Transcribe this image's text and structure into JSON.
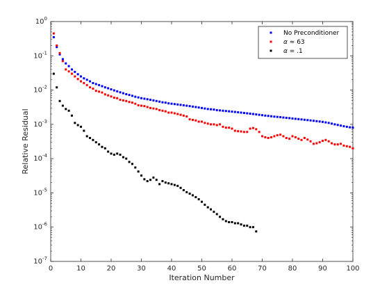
{
  "chart_data": {
    "type": "scatter",
    "title": "",
    "xlabel": "Iteration Number",
    "ylabel": "Relative Residual",
    "xlim": [
      0,
      100
    ],
    "ylim": [
      1e-07,
      1
    ],
    "yscale": "log",
    "grid": false,
    "legend_position": "top-right",
    "x_ticks": [
      {
        "value": 0,
        "label": "0"
      },
      {
        "value": 10,
        "label": "10"
      },
      {
        "value": 20,
        "label": "20"
      },
      {
        "value": 30,
        "label": "30"
      },
      {
        "value": 40,
        "label": "40"
      },
      {
        "value": 50,
        "label": "50"
      },
      {
        "value": 60,
        "label": "60"
      },
      {
        "value": 70,
        "label": "70"
      },
      {
        "value": 80,
        "label": "80"
      },
      {
        "value": 90,
        "label": "90"
      },
      {
        "value": 100,
        "label": "100"
      }
    ],
    "y_ticks": [
      {
        "value": 1,
        "base": "10",
        "exp": "0"
      },
      {
        "value": 0.1,
        "base": "10",
        "exp": "-1"
      },
      {
        "value": 0.01,
        "base": "10",
        "exp": "-2"
      },
      {
        "value": 0.001,
        "base": "10",
        "exp": "-3"
      },
      {
        "value": 0.0001,
        "base": "10",
        "exp": "-4"
      },
      {
        "value": 1e-05,
        "base": "10",
        "exp": "-5"
      },
      {
        "value": 1e-06,
        "base": "10",
        "exp": "-6"
      },
      {
        "value": 1e-07,
        "base": "10",
        "exp": "-7"
      }
    ],
    "series": [
      {
        "name": "No Preconditioner",
        "color": "#0000ff",
        "points": [
          [
            1,
            0.35
          ],
          [
            2,
            0.18
          ],
          [
            3,
            0.11
          ],
          [
            4,
            0.08
          ],
          [
            5,
            0.06
          ],
          [
            6,
            0.05
          ],
          [
            7,
            0.04
          ],
          [
            8,
            0.034
          ],
          [
            9,
            0.029
          ],
          [
            10,
            0.025
          ],
          [
            11,
            0.022
          ],
          [
            12,
            0.02
          ],
          [
            13,
            0.018
          ],
          [
            14,
            0.016
          ],
          [
            15,
            0.015
          ],
          [
            16,
            0.014
          ],
          [
            17,
            0.013
          ],
          [
            18,
            0.012
          ],
          [
            19,
            0.0113
          ],
          [
            20,
            0.0105
          ],
          [
            21,
            0.0098
          ],
          [
            22,
            0.0092
          ],
          [
            23,
            0.0086
          ],
          [
            24,
            0.0081
          ],
          [
            25,
            0.0076
          ],
          [
            26,
            0.0072
          ],
          [
            27,
            0.0068
          ],
          [
            28,
            0.0064
          ],
          [
            29,
            0.0061
          ],
          [
            30,
            0.0058
          ],
          [
            31,
            0.0056
          ],
          [
            32,
            0.0054
          ],
          [
            33,
            0.0052
          ],
          [
            34,
            0.005
          ],
          [
            35,
            0.0048
          ],
          [
            36,
            0.0046
          ],
          [
            37,
            0.0044
          ],
          [
            38,
            0.0043
          ],
          [
            39,
            0.0041
          ],
          [
            40,
            0.004
          ],
          [
            41,
            0.0039
          ],
          [
            42,
            0.0038
          ],
          [
            43,
            0.0037
          ],
          [
            44,
            0.0036
          ],
          [
            45,
            0.0035
          ],
          [
            46,
            0.0034
          ],
          [
            47,
            0.0033
          ],
          [
            48,
            0.0032
          ],
          [
            49,
            0.0031
          ],
          [
            50,
            0.003
          ],
          [
            51,
            0.0029
          ],
          [
            52,
            0.0028
          ],
          [
            53,
            0.00275
          ],
          [
            54,
            0.0027
          ],
          [
            55,
            0.0026
          ],
          [
            56,
            0.00255
          ],
          [
            57,
            0.0025
          ],
          [
            58,
            0.00245
          ],
          [
            59,
            0.0024
          ],
          [
            60,
            0.00235
          ],
          [
            61,
            0.0023
          ],
          [
            62,
            0.00225
          ],
          [
            63,
            0.0022
          ],
          [
            64,
            0.00215
          ],
          [
            65,
            0.0021
          ],
          [
            66,
            0.00205
          ],
          [
            67,
            0.002
          ],
          [
            68,
            0.00195
          ],
          [
            69,
            0.0019
          ],
          [
            70,
            0.00185
          ],
          [
            71,
            0.0018
          ],
          [
            72,
            0.00176
          ],
          [
            73,
            0.00172
          ],
          [
            74,
            0.00168
          ],
          [
            75,
            0.00165
          ],
          [
            76,
            0.00162
          ],
          [
            77,
            0.00158
          ],
          [
            78,
            0.00155
          ],
          [
            79,
            0.00152
          ],
          [
            80,
            0.00148
          ],
          [
            81,
            0.00145
          ],
          [
            82,
            0.00142
          ],
          [
            83,
            0.00139
          ],
          [
            84,
            0.00136
          ],
          [
            85,
            0.00133
          ],
          [
            86,
            0.0013
          ],
          [
            87,
            0.00127
          ],
          [
            88,
            0.00124
          ],
          [
            89,
            0.00121
          ],
          [
            90,
            0.00118
          ],
          [
            91,
            0.00114
          ],
          [
            92,
            0.0011
          ],
          [
            93,
            0.00105
          ],
          [
            94,
            0.001
          ],
          [
            95,
            0.00096
          ],
          [
            96,
            0.00092
          ],
          [
            97,
            0.00088
          ],
          [
            98,
            0.00085
          ],
          [
            99,
            0.00082
          ],
          [
            100,
            0.0008
          ]
        ]
      },
      {
        "name": "α ≈ 63",
        "label_parts": [
          "α",
          " ≈ 63"
        ],
        "color": "#ff0000",
        "points": [
          [
            1,
            0.45
          ],
          [
            2,
            0.2
          ],
          [
            3,
            0.12
          ],
          [
            4,
            0.07
          ],
          [
            5,
            0.04
          ],
          [
            6,
            0.035
          ],
          [
            7,
            0.03
          ],
          [
            8,
            0.025
          ],
          [
            9,
            0.021
          ],
          [
            10,
            0.018
          ],
          [
            11,
            0.016
          ],
          [
            12,
            0.014
          ],
          [
            13,
            0.012
          ],
          [
            14,
            0.011
          ],
          [
            15,
            0.0095
          ],
          [
            16,
            0.009
          ],
          [
            17,
            0.0085
          ],
          [
            18,
            0.0075
          ],
          [
            19,
            0.007
          ],
          [
            20,
            0.0065
          ],
          [
            21,
            0.006
          ],
          [
            22,
            0.0058
          ],
          [
            23,
            0.0052
          ],
          [
            24,
            0.005
          ],
          [
            25,
            0.0048
          ],
          [
            26,
            0.0045
          ],
          [
            27,
            0.0043
          ],
          [
            28,
            0.004
          ],
          [
            29,
            0.0036
          ],
          [
            30,
            0.0035
          ],
          [
            31,
            0.0034
          ],
          [
            32,
            0.0032
          ],
          [
            33,
            0.003
          ],
          [
            34,
            0.0029
          ],
          [
            35,
            0.0028
          ],
          [
            36,
            0.0026
          ],
          [
            37,
            0.0025
          ],
          [
            38,
            0.0024
          ],
          [
            39,
            0.0022
          ],
          [
            40,
            0.0022
          ],
          [
            41,
            0.0021
          ],
          [
            42,
            0.002
          ],
          [
            43,
            0.0019
          ],
          [
            44,
            0.0018
          ],
          [
            45,
            0.0017
          ],
          [
            46,
            0.0014
          ],
          [
            47,
            0.00135
          ],
          [
            48,
            0.0013
          ],
          [
            49,
            0.0012
          ],
          [
            50,
            0.0012
          ],
          [
            51,
            0.0011
          ],
          [
            52,
            0.00105
          ],
          [
            53,
            0.001
          ],
          [
            54,
            0.001
          ],
          [
            55,
            0.00095
          ],
          [
            56,
            0.001
          ],
          [
            57,
            0.00085
          ],
          [
            58,
            0.0008
          ],
          [
            59,
            0.0008
          ],
          [
            60,
            0.00075
          ],
          [
            61,
            0.00065
          ],
          [
            62,
            0.00063
          ],
          [
            63,
            0.00062
          ],
          [
            64,
            0.0006
          ],
          [
            65,
            0.0006
          ],
          [
            66,
            0.00075
          ],
          [
            67,
            0.00078
          ],
          [
            68,
            0.00072
          ],
          [
            69,
            0.0006
          ],
          [
            70,
            0.00045
          ],
          [
            71,
            0.00042
          ],
          [
            72,
            0.0004
          ],
          [
            73,
            0.00042
          ],
          [
            74,
            0.00045
          ],
          [
            75,
            0.00048
          ],
          [
            76,
            0.0005
          ],
          [
            77,
            0.00045
          ],
          [
            78,
            0.0004
          ],
          [
            79,
            0.00038
          ],
          [
            80,
            0.00045
          ],
          [
            81,
            0.00042
          ],
          [
            82,
            0.00038
          ],
          [
            83,
            0.00035
          ],
          [
            84,
            0.0004
          ],
          [
            85,
            0.00036
          ],
          [
            86,
            0.00032
          ],
          [
            87,
            0.00027
          ],
          [
            88,
            0.00028
          ],
          [
            89,
            0.0003
          ],
          [
            90,
            0.00033
          ],
          [
            91,
            0.00035
          ],
          [
            92,
            0.00032
          ],
          [
            93,
            0.00028
          ],
          [
            94,
            0.00026
          ],
          [
            95,
            0.00026
          ],
          [
            96,
            0.00027
          ],
          [
            97,
            0.00024
          ],
          [
            98,
            0.00023
          ],
          [
            99,
            0.00022
          ],
          [
            100,
            0.0002
          ]
        ]
      },
      {
        "name": "α = .1",
        "label_parts": [
          "α",
          " = .1"
        ],
        "color": "#000000",
        "points": [
          [
            1,
            0.03
          ],
          [
            2,
            0.012
          ],
          [
            3,
            0.0048
          ],
          [
            4,
            0.0035
          ],
          [
            5,
            0.0028
          ],
          [
            6,
            0.0025
          ],
          [
            7,
            0.0018
          ],
          [
            8,
            0.0011
          ],
          [
            9,
            0.00095
          ],
          [
            10,
            0.00085
          ],
          [
            11,
            0.00065
          ],
          [
            12,
            0.00045
          ],
          [
            13,
            0.0004
          ],
          [
            14,
            0.00035
          ],
          [
            15,
            0.0003
          ],
          [
            16,
            0.00026
          ],
          [
            17,
            0.00022
          ],
          [
            18,
            0.0002
          ],
          [
            19,
            0.00016
          ],
          [
            20,
            0.00014
          ],
          [
            21,
            0.00013
          ],
          [
            22,
            0.00014
          ],
          [
            23,
            0.00013
          ],
          [
            24,
            0.00011
          ],
          [
            25,
            0.0001
          ],
          [
            26,
            8e-05
          ],
          [
            27,
            7e-05
          ],
          [
            28,
            5.5e-05
          ],
          [
            29,
            4.2e-05
          ],
          [
            30,
            3.2e-05
          ],
          [
            31,
            2.5e-05
          ],
          [
            32,
            2.2e-05
          ],
          [
            33,
            2.4e-05
          ],
          [
            34,
            2.8e-05
          ],
          [
            35,
            2.4e-05
          ],
          [
            36,
            1.8e-05
          ],
          [
            37,
            2.2e-05
          ],
          [
            38,
            2e-05
          ],
          [
            39,
            1.9e-05
          ],
          [
            40,
            1.8e-05
          ],
          [
            41,
            1.7e-05
          ],
          [
            42,
            1.6e-05
          ],
          [
            43,
            1.4e-05
          ],
          [
            44,
            1.2e-05
          ],
          [
            45,
            1.05e-05
          ],
          [
            46,
            9.5e-06
          ],
          [
            47,
            8.5e-06
          ],
          [
            48,
            7.5e-06
          ],
          [
            49,
            6.5e-06
          ],
          [
            50,
            5.5e-06
          ],
          [
            51,
            4.5e-06
          ],
          [
            52,
            3.8e-06
          ],
          [
            53,
            3.3e-06
          ],
          [
            54,
            2.8e-06
          ],
          [
            55,
            2.4e-06
          ],
          [
            56,
            2e-06
          ],
          [
            57,
            1.7e-06
          ],
          [
            58,
            1.5e-06
          ],
          [
            59,
            1.4e-06
          ],
          [
            60,
            1.4e-06
          ],
          [
            61,
            1.3e-06
          ],
          [
            62,
            1.3e-06
          ],
          [
            63,
            1.2e-06
          ],
          [
            64,
            1.1e-06
          ],
          [
            65,
            1.1e-06
          ],
          [
            66,
            1e-06
          ],
          [
            67,
            1e-06
          ],
          [
            68,
            7.5e-07
          ]
        ]
      }
    ]
  }
}
